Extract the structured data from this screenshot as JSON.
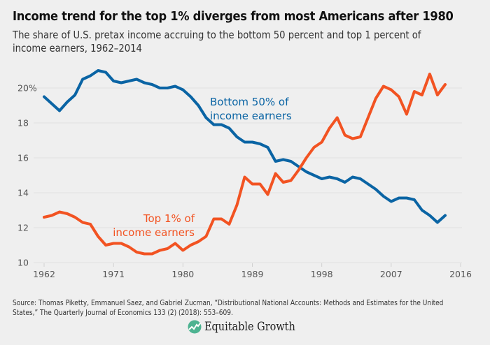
{
  "header": {
    "title": "Income trend for the top 1% diverges from most Americans after 1980",
    "subtitle": "The share of U.S. pretax income accruing to the bottom 50 percent and top 1 percent of income earners, 1962–2014"
  },
  "chart_data": {
    "type": "line",
    "title": "Income trend for the top 1% diverges from most Americans after 1980",
    "subtitle": "The share of U.S. pretax income accruing to the bottom 50 percent and top 1 percent of income earners, 1962–2014",
    "xlabel": "",
    "ylabel": "",
    "xlim": [
      1962,
      2016
    ],
    "ylim": [
      10,
      21.5
    ],
    "grid": true,
    "legend": "inline annotations",
    "x_ticks": [
      1962,
      1971,
      1980,
      1989,
      1998,
      2007,
      2016
    ],
    "x_tick_labels": [
      "1962",
      "1971",
      "1980",
      "1989",
      "1998",
      "2007",
      "2016"
    ],
    "y_ticks": [
      10,
      12,
      14,
      16,
      18,
      20
    ],
    "y_tick_labels": [
      "10",
      "12",
      "14",
      "16",
      "18",
      "20%"
    ],
    "x": [
      1962,
      1963,
      1964,
      1965,
      1966,
      1967,
      1968,
      1969,
      1970,
      1971,
      1972,
      1973,
      1974,
      1975,
      1976,
      1977,
      1978,
      1979,
      1980,
      1981,
      1982,
      1983,
      1984,
      1985,
      1986,
      1987,
      1988,
      1989,
      1990,
      1991,
      1992,
      1993,
      1994,
      1995,
      1996,
      1997,
      1998,
      1999,
      2000,
      2001,
      2002,
      2003,
      2004,
      2005,
      2006,
      2007,
      2008,
      2009,
      2010,
      2011,
      2012,
      2013,
      2014
    ],
    "series": [
      {
        "name": "Bottom 50% of income earners",
        "color": "#0a64a4",
        "values": [
          19.5,
          19.1,
          18.7,
          19.2,
          19.6,
          20.5,
          20.7,
          21.0,
          20.9,
          20.4,
          20.3,
          20.4,
          20.5,
          20.3,
          20.2,
          20.0,
          20.0,
          20.1,
          19.9,
          19.5,
          19.0,
          18.3,
          17.9,
          17.9,
          17.7,
          17.2,
          16.9,
          16.9,
          16.8,
          16.6,
          15.8,
          15.9,
          15.8,
          15.5,
          15.2,
          15.0,
          14.8,
          14.9,
          14.8,
          14.6,
          14.9,
          14.8,
          14.5,
          14.2,
          13.8,
          13.5,
          13.7,
          13.7,
          13.6,
          13.0,
          12.7,
          12.3,
          12.7
        ]
      },
      {
        "name": "Top 1% of income earners",
        "color": "#f25322",
        "values": [
          12.6,
          12.7,
          12.9,
          12.8,
          12.6,
          12.3,
          12.2,
          11.5,
          11.0,
          11.1,
          11.1,
          10.9,
          10.6,
          10.5,
          10.5,
          10.7,
          10.8,
          11.1,
          10.7,
          11.0,
          11.2,
          11.5,
          12.5,
          12.5,
          12.2,
          13.3,
          14.9,
          14.5,
          14.5,
          13.9,
          15.1,
          14.6,
          14.7,
          15.3,
          16.0,
          16.6,
          16.9,
          17.7,
          18.3,
          17.3,
          17.1,
          17.2,
          18.3,
          19.4,
          20.1,
          19.9,
          19.5,
          18.5,
          19.8,
          19.6,
          20.8,
          19.6,
          20.2
        ]
      }
    ],
    "annotations": [
      {
        "series": "Bottom 50% of income earners",
        "lines": [
          "Bottom 50% of",
          "income earners"
        ]
      },
      {
        "series": "Top 1% of income earners",
        "lines": [
          "Top 1% of",
          "income earners"
        ]
      }
    ]
  },
  "footer": {
    "source": "Source: Thomas Piketty, Emmanuel Saez, and Gabriel Zucman, “Distributional National Accounts: Methods and Estimates for the United States,” The Quarterly Journal of Economics 133 (2) (2018): 553–609.",
    "logo_text": "Equitable Growth",
    "logo_color": "#4db391"
  }
}
